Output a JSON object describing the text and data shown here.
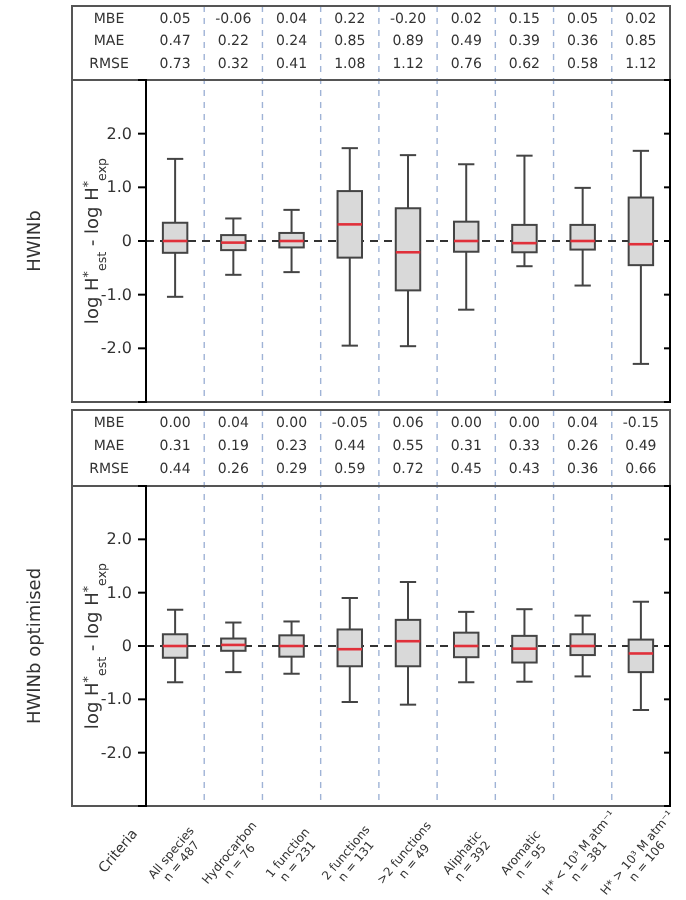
{
  "chart_data": [
    {
      "type": "box",
      "title": "HWINb",
      "ylabel": "log H$^{*}$$_{est}$ - log H$^{*}$$_{exp}$",
      "categories": [
        "All species\nn = 487",
        "Hydrocarbon\nn = 76",
        "1 function\nn = 231",
        "2 functions\nn = 131",
        ">2 functions\nn = 49",
        "Aliphatic\nn = 392",
        "Aromatic\nn = 95",
        "H* < 10³ M atm⁻¹\nn = 381",
        "H* > 10³ M atm⁻¹\nn = 106"
      ],
      "boxes": [
        {
          "low": -1.04,
          "q1": -0.22,
          "median": 0,
          "q3": 0.34,
          "high": 1.53
        },
        {
          "low": -0.63,
          "q1": -0.17,
          "median": -0.03,
          "q3": 0.11,
          "high": 0.42
        },
        {
          "low": -0.58,
          "q1": -0.12,
          "median": 0,
          "q3": 0.15,
          "high": 0.58
        },
        {
          "low": -1.95,
          "q1": -0.31,
          "median": 0.31,
          "q3": 0.93,
          "high": 1.73
        },
        {
          "low": -1.96,
          "q1": -0.92,
          "median": -0.21,
          "q3": 0.61,
          "high": 1.6
        },
        {
          "low": -1.28,
          "q1": -0.2,
          "median": 0,
          "q3": 0.36,
          "high": 1.43
        },
        {
          "low": -0.47,
          "q1": -0.21,
          "median": -0.04,
          "q3": 0.3,
          "high": 1.59
        },
        {
          "low": -0.83,
          "q1": -0.16,
          "median": 0,
          "q3": 0.3,
          "high": 0.99
        },
        {
          "low": -2.29,
          "q1": -0.45,
          "median": -0.06,
          "q3": 0.81,
          "high": 1.68
        }
      ],
      "ylim": [
        -3,
        3
      ],
      "yticks": [
        {
          "value": -2,
          "label": "-2.0"
        },
        {
          "value": -1,
          "label": "-1.0"
        },
        0,
        {
          "value": 1,
          "label": "1.0"
        },
        {
          "value": 2,
          "label": "2.0"
        }
      ],
      "ref_lines": [
        {
          "axis": "y",
          "value": 0,
          "line_style": "dashed",
          "color": "#333333"
        }
      ],
      "annotations": [
        "MBE 0.05 -0.06 0.04 0.22 -0.20 0.02 0.15 0.05 0.02",
        "MAE 0.47 0.22 0.24 0.85 0.89 0.49 0.39 0.36 0.85",
        "RMSE 0.73 0.32 0.41 1.08 1.12 0.76 0.62 0.58 1.12"
      ],
      "tick_labels": "y"
    },
    {
      "type": "box",
      "title": "HWINb optimised",
      "ylabel": "log H$^{*}$$_{est}$ - log H$^{*}$$_{exp}$",
      "xlabel": "Criteria",
      "categories": [
        "All species\nn = 487",
        "Hydrocarbon\nn = 76",
        "1 function\nn = 231",
        "2 functions\nn = 131",
        ">2 functions\nn = 49",
        "Aliphatic\nn = 392",
        "Aromatic\nn = 95",
        "H* < 10³ M atm⁻¹\nn = 381",
        "H* > 10³ M atm⁻¹\nn = 106"
      ],
      "boxes": [
        {
          "low": -0.68,
          "q1": -0.22,
          "median": 0,
          "q3": 0.22,
          "high": 0.68
        },
        {
          "low": -0.49,
          "q1": -0.09,
          "median": 0.02,
          "q3": 0.14,
          "high": 0.44
        },
        {
          "low": -0.52,
          "q1": -0.2,
          "median": 0,
          "q3": 0.2,
          "high": 0.46
        },
        {
          "low": -1.05,
          "q1": -0.38,
          "median": -0.06,
          "q3": 0.31,
          "high": 0.9
        },
        {
          "low": -1.1,
          "q1": -0.38,
          "median": 0.09,
          "q3": 0.49,
          "high": 1.2
        },
        {
          "low": -0.68,
          "q1": -0.21,
          "median": 0,
          "q3": 0.25,
          "high": 0.64
        },
        {
          "low": -0.67,
          "q1": -0.31,
          "median": -0.05,
          "q3": 0.19,
          "high": 0.69
        },
        {
          "low": -0.57,
          "q1": -0.17,
          "median": 0,
          "q3": 0.22,
          "high": 0.57
        },
        {
          "low": -1.2,
          "q1": -0.49,
          "median": -0.14,
          "q3": 0.12,
          "high": 0.83
        }
      ],
      "ylim": [
        -3,
        3
      ],
      "yticks": [
        {
          "value": -2,
          "label": "-2.0"
        },
        {
          "value": -1,
          "label": "-1.0"
        },
        0,
        {
          "value": 1,
          "label": "1.0"
        },
        {
          "value": 2,
          "label": "2.0"
        }
      ],
      "ref_lines": [
        {
          "axis": "y",
          "value": 0,
          "line_style": "dashed",
          "color": "#333333"
        }
      ],
      "annotations": [
        "MBE 0.00 0.04 0.00 -0.05 0.06 0.00 0.00 0.04 -0.15",
        "MAE 0.31 0.19 0.23 0.44 0.55 0.31 0.33 0.26 0.49",
        "RMSE 0.44 0.26 0.29 0.59 0.72 0.45 0.43 0.36 0.66"
      ]
    }
  ]
}
